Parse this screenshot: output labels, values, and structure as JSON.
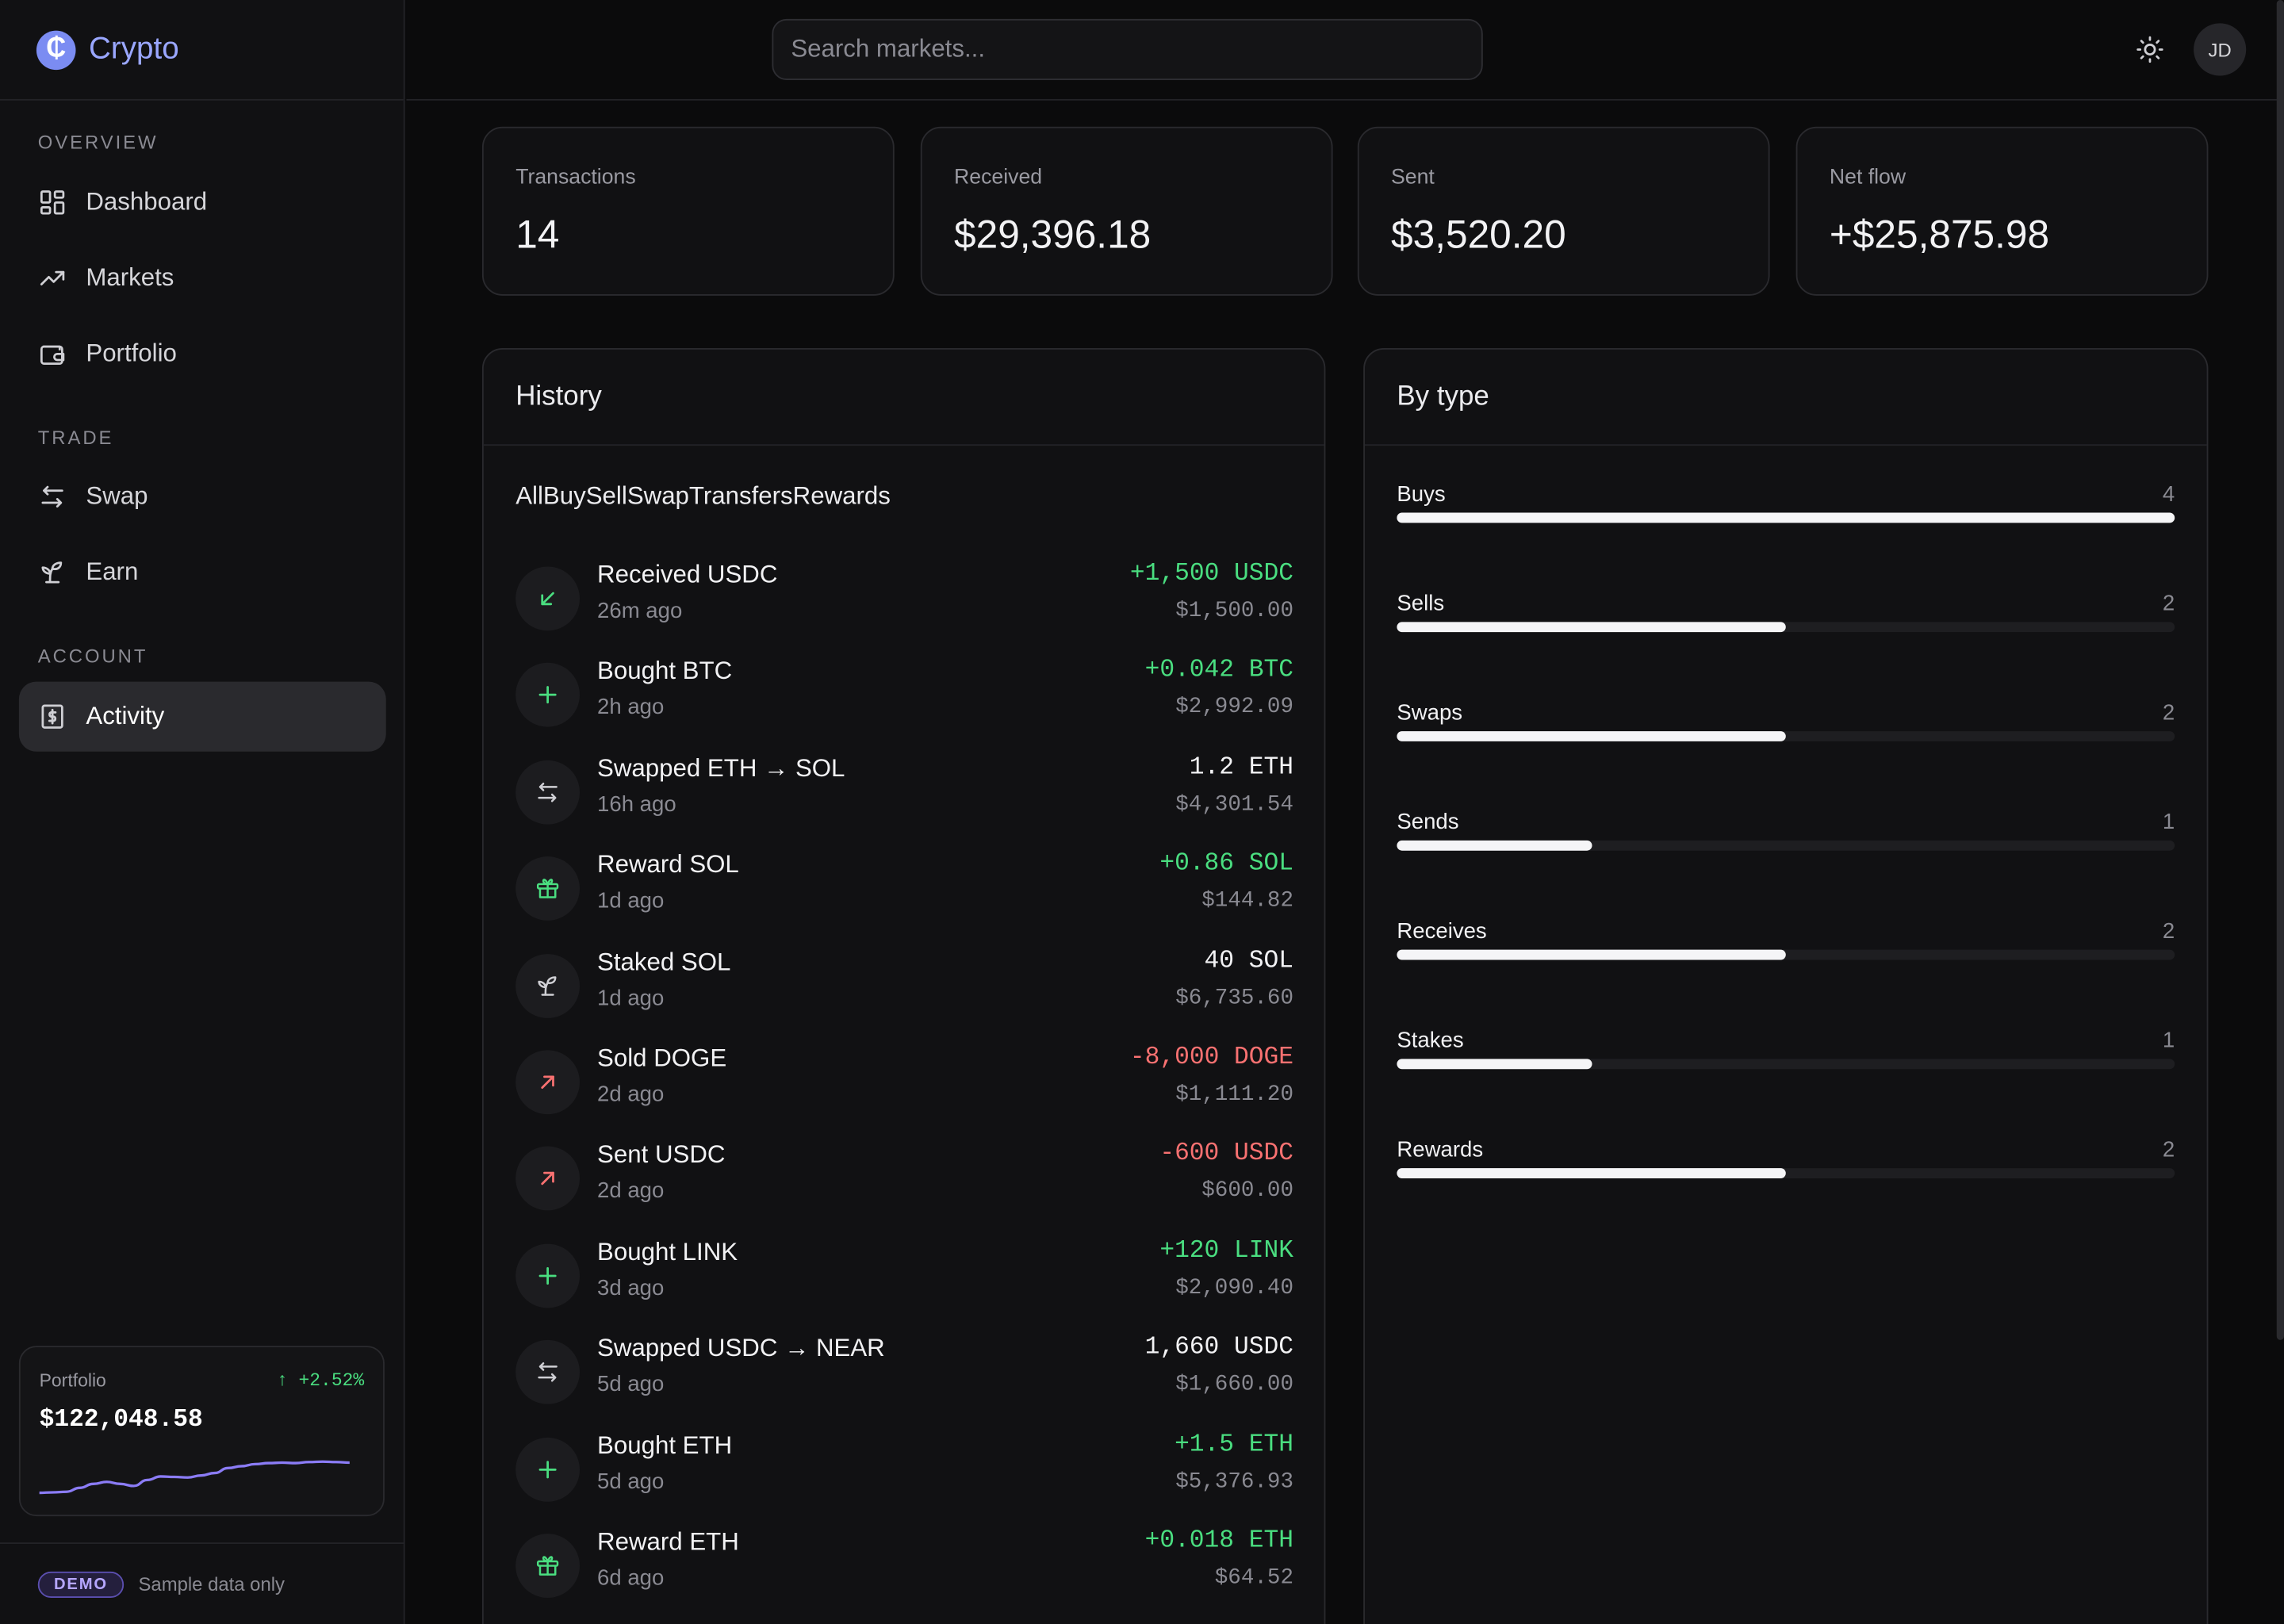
{
  "brand": {
    "name": "Crypto",
    "logo_glyph": "₵",
    "accent": "#9aa7ff"
  },
  "sidebar": {
    "sections": [
      {
        "label": "OVERVIEW",
        "items": [
          {
            "label": "Dashboard",
            "icon": "grid-icon",
            "active": false
          },
          {
            "label": "Markets",
            "icon": "trending-up-icon",
            "active": false
          },
          {
            "label": "Portfolio",
            "icon": "wallet-icon",
            "active": false
          }
        ]
      },
      {
        "label": "TRADE",
        "items": [
          {
            "label": "Swap",
            "icon": "swap-icon",
            "active": false
          },
          {
            "label": "Earn",
            "icon": "sprout-icon",
            "active": false
          }
        ]
      },
      {
        "label": "ACCOUNT",
        "items": [
          {
            "label": "Activity",
            "icon": "receipt-icon",
            "active": true
          }
        ]
      }
    ],
    "portfolio": {
      "label": "Portfolio",
      "change": "↑ +2.52%",
      "value": "$122,048.58",
      "spark_color": "#8b7cf6",
      "spark": [
        0.12,
        0.13,
        0.14,
        0.22,
        0.3,
        0.34,
        0.3,
        0.26,
        0.38,
        0.45,
        0.44,
        0.43,
        0.47,
        0.52,
        0.62,
        0.66,
        0.7,
        0.72,
        0.73,
        0.72,
        0.74,
        0.75,
        0.74,
        0.73
      ]
    },
    "footer": {
      "badge": "DEMO",
      "note": "Sample data only"
    }
  },
  "topbar": {
    "search_placeholder": "Search markets...",
    "theme_icon": "sun-icon",
    "avatar_initials": "JD"
  },
  "stats": [
    {
      "label": "Transactions",
      "value": "14"
    },
    {
      "label": "Received",
      "value": "$29,396.18"
    },
    {
      "label": "Sent",
      "value": "$3,520.20"
    },
    {
      "label": "Net flow",
      "value": "+$25,875.98"
    }
  ],
  "history": {
    "title": "History",
    "filters": [
      "All",
      "Buy",
      "Sell",
      "Swap",
      "Transfers",
      "Rewards"
    ],
    "transactions": [
      {
        "title": "Received USDC",
        "time": "26m ago",
        "amount": "+1,500 USDC",
        "usd": "$1,500.00",
        "tone": "pos",
        "icon": "arrow-down-left-icon"
      },
      {
        "title": "Bought BTC",
        "time": "2h ago",
        "amount": "+0.042 BTC",
        "usd": "$2,992.09",
        "tone": "pos",
        "icon": "plus-icon"
      },
      {
        "title": "Swapped ETH → SOL",
        "time": "16h ago",
        "amount": "1.2 ETH",
        "usd": "$4,301.54",
        "tone": "neu",
        "icon": "swap-icon"
      },
      {
        "title": "Reward SOL",
        "time": "1d ago",
        "amount": "+0.86 SOL",
        "usd": "$144.82",
        "tone": "pos",
        "icon": "gift-icon"
      },
      {
        "title": "Staked SOL",
        "time": "1d ago",
        "amount": "40 SOL",
        "usd": "$6,735.60",
        "tone": "neu",
        "icon": "sprout-icon"
      },
      {
        "title": "Sold DOGE",
        "time": "2d ago",
        "amount": "-8,000 DOGE",
        "usd": "$1,111.20",
        "tone": "neg",
        "icon": "arrow-up-right-icon"
      },
      {
        "title": "Sent USDC",
        "time": "2d ago",
        "amount": "-600 USDC",
        "usd": "$600.00",
        "tone": "neg",
        "icon": "arrow-up-right-icon"
      },
      {
        "title": "Bought LINK",
        "time": "3d ago",
        "amount": "+120 LINK",
        "usd": "$2,090.40",
        "tone": "pos",
        "icon": "plus-icon"
      },
      {
        "title": "Swapped USDC → NEAR",
        "time": "5d ago",
        "amount": "1,660 USDC",
        "usd": "$1,660.00",
        "tone": "neu",
        "icon": "swap-icon"
      },
      {
        "title": "Bought ETH",
        "time": "5d ago",
        "amount": "+1.5 ETH",
        "usd": "$5,376.93",
        "tone": "pos",
        "icon": "plus-icon"
      },
      {
        "title": "Reward ETH",
        "time": "6d ago",
        "amount": "+0.018 ETH",
        "usd": "$64.52",
        "tone": "pos",
        "icon": "gift-icon"
      }
    ]
  },
  "by_type": {
    "title": "By type",
    "max": 4,
    "types": [
      {
        "label": "Buys",
        "count": 4
      },
      {
        "label": "Sells",
        "count": 2
      },
      {
        "label": "Swaps",
        "count": 2
      },
      {
        "label": "Sends",
        "count": 1
      },
      {
        "label": "Receives",
        "count": 2
      },
      {
        "label": "Stakes",
        "count": 1
      },
      {
        "label": "Rewards",
        "count": 2
      }
    ]
  },
  "colors": {
    "positive": "#4ade80",
    "negative": "#f87171"
  }
}
